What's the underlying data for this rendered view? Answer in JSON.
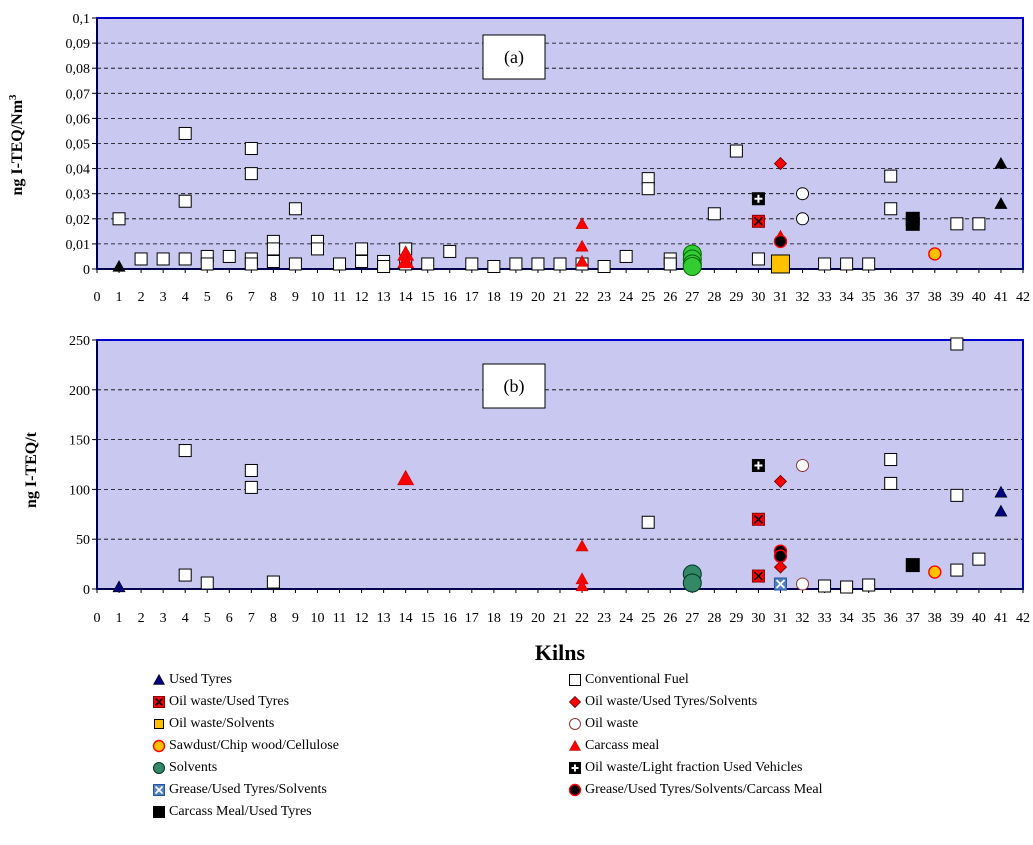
{
  "chart_data": [
    {
      "id": "a",
      "type": "scatter",
      "annotation": "(a)",
      "ylabel": "ng I-TEQ/Nm",
      "ylabel_superscript": "3",
      "xlabel": "",
      "xlim": [
        0,
        42
      ],
      "ylim": [
        0,
        0.1
      ],
      "x_ticks": [
        0,
        1,
        2,
        3,
        4,
        5,
        6,
        7,
        8,
        9,
        10,
        11,
        12,
        13,
        14,
        15,
        16,
        17,
        18,
        19,
        20,
        21,
        22,
        23,
        24,
        25,
        26,
        27,
        28,
        29,
        30,
        31,
        32,
        33,
        34,
        35,
        36,
        37,
        38,
        39,
        40,
        41,
        42
      ],
      "y_tick_labels": [
        "0",
        "0,01",
        "0,02",
        "0,03",
        "0,04",
        "0,05",
        "0,06",
        "0,07",
        "0,08",
        "0,09",
        "0,1"
      ],
      "y_ticks": [
        0,
        0.01,
        0.02,
        0.03,
        0.04,
        0.05,
        0.06,
        0.07,
        0.08,
        0.09,
        0.1
      ],
      "grid": "horizontal dashed",
      "background": "#c8c8f0",
      "series": [
        {
          "name": "Conventional Fuel",
          "marker": "square-open",
          "points": [
            [
              1,
              0.02
            ],
            [
              2,
              0.004
            ],
            [
              3,
              0.004
            ],
            [
              4,
              0.054
            ],
            [
              4,
              0.027
            ],
            [
              4,
              0.004
            ],
            [
              5,
              0.005
            ],
            [
              5,
              0.002
            ],
            [
              6,
              0.005
            ],
            [
              7,
              0.048
            ],
            [
              7,
              0.038
            ],
            [
              7,
              0.004
            ],
            [
              7,
              0.002
            ],
            [
              8,
              0.011
            ],
            [
              8,
              0.008
            ],
            [
              8,
              0.003
            ],
            [
              9,
              0.024
            ],
            [
              9,
              0.002
            ],
            [
              10,
              0.011
            ],
            [
              10,
              0.008
            ],
            [
              11,
              0.002
            ],
            [
              12,
              0.008
            ],
            [
              12,
              0.003
            ],
            [
              13,
              0.003
            ],
            [
              13,
              0.001
            ],
            [
              14,
              0.008
            ],
            [
              14,
              0.002
            ],
            [
              15,
              0.002
            ],
            [
              16,
              0.007
            ],
            [
              17,
              0.002
            ],
            [
              18,
              0.001
            ],
            [
              19,
              0.002
            ],
            [
              20,
              0.002
            ],
            [
              21,
              0.002
            ],
            [
              22,
              0.002
            ],
            [
              23,
              0.001
            ],
            [
              24,
              0.005
            ],
            [
              25,
              0.036
            ],
            [
              25,
              0.032
            ],
            [
              26,
              0.004
            ],
            [
              26,
              0.002
            ],
            [
              28,
              0.022
            ],
            [
              29,
              0.047
            ],
            [
              30,
              0.004
            ],
            [
              33,
              0.002
            ],
            [
              34,
              0.002
            ],
            [
              35,
              0.002
            ],
            [
              36,
              0.037
            ],
            [
              36,
              0.024
            ],
            [
              39,
              0.018
            ],
            [
              40,
              0.018
            ]
          ]
        },
        {
          "name": "Used Tyres",
          "marker": "triangle-black",
          "points": [
            [
              1,
              0.001
            ],
            [
              41,
              0.042
            ],
            [
              41,
              0.026
            ]
          ]
        },
        {
          "name": "Carcass meal",
          "marker": "triangle-red",
          "points": [
            [
              14,
              0.006
            ],
            [
              14,
              0.003
            ],
            [
              22,
              0.018
            ],
            [
              22,
              0.009
            ],
            [
              22,
              0.003
            ],
            [
              31,
              0.013
            ]
          ]
        },
        {
          "name": "Solvents",
          "marker": "circle-green",
          "points": [
            [
              27,
              0.006
            ],
            [
              27,
              0.004
            ],
            [
              27,
              0.002
            ],
            [
              27,
              0.001
            ]
          ]
        },
        {
          "name": "Oil waste/Used Tyres",
          "marker": "square-red-x",
          "points": [
            [
              30,
              0.019
            ]
          ]
        },
        {
          "name": "Oil waste/Used Tyres/Solvents",
          "marker": "diamond-red",
          "points": [
            [
              31,
              0.042
            ]
          ]
        },
        {
          "name": "Oil waste/Light fraction Used Vehicles",
          "marker": "square-black-plus",
          "points": [
            [
              30,
              0.028
            ]
          ]
        },
        {
          "name": "Oil waste/Solvents",
          "marker": "square-yellow",
          "points": [
            [
              31,
              0.002
            ]
          ]
        },
        {
          "name": "Grease/Used Tyres/Solvents/Carcass Meal",
          "marker": "circle-black-red",
          "points": [
            [
              31,
              0.011
            ]
          ]
        },
        {
          "name": "Oil waste",
          "marker": "circle-open",
          "points": [
            [
              32,
              0.03
            ],
            [
              32,
              0.02
            ]
          ]
        },
        {
          "name": "Carcass Meal/Used Tyres",
          "marker": "square-black",
          "points": [
            [
              37,
              0.02
            ],
            [
              37,
              0.018
            ]
          ]
        },
        {
          "name": "Sawdust/Chip wood/Cellulose",
          "marker": "circle-yellow",
          "points": [
            [
              38,
              0.006
            ]
          ]
        }
      ]
    },
    {
      "id": "b",
      "type": "scatter",
      "annotation": "(b)",
      "ylabel": "ng I-TEQ/t",
      "xlabel": "Kilns",
      "xlim": [
        0,
        42
      ],
      "ylim": [
        0,
        250
      ],
      "x_ticks": [
        0,
        1,
        2,
        3,
        4,
        5,
        6,
        7,
        8,
        9,
        10,
        11,
        12,
        13,
        14,
        15,
        16,
        17,
        18,
        19,
        20,
        21,
        22,
        23,
        24,
        25,
        26,
        27,
        28,
        29,
        30,
        31,
        32,
        33,
        34,
        35,
        36,
        37,
        38,
        39,
        40,
        41,
        42
      ],
      "y_tick_labels": [
        "0",
        "50",
        "100",
        "150",
        "200",
        "250"
      ],
      "y_ticks": [
        0,
        50,
        100,
        150,
        200,
        250
      ],
      "grid": "horizontal dashed",
      "background": "#c8c8f0",
      "series": [
        {
          "name": "Conventional Fuel",
          "marker": "square-open",
          "points": [
            [
              4,
              139
            ],
            [
              4,
              14
            ],
            [
              5,
              6
            ],
            [
              7,
              119
            ],
            [
              7,
              102
            ],
            [
              8,
              7
            ],
            [
              25,
              67
            ],
            [
              33,
              3
            ],
            [
              34,
              2
            ],
            [
              35,
              4
            ],
            [
              36,
              130
            ],
            [
              36,
              106
            ],
            [
              39,
              246
            ],
            [
              39,
              94
            ],
            [
              39,
              19
            ],
            [
              40,
              30
            ]
          ]
        },
        {
          "name": "Used Tyres",
          "marker": "triangle-navy",
          "points": [
            [
              1,
              2
            ],
            [
              41,
              97
            ],
            [
              41,
              78
            ]
          ]
        },
        {
          "name": "Carcass meal",
          "marker": "triangle-red",
          "points": [
            [
              14,
              111
            ],
            [
              22,
              43
            ],
            [
              22,
              10
            ],
            [
              22,
              3
            ]
          ]
        },
        {
          "name": "Solvents",
          "marker": "circle-green-dark",
          "points": [
            [
              27,
              15
            ],
            [
              27,
              6
            ]
          ]
        },
        {
          "name": "Oil waste/Used Tyres",
          "marker": "square-red-x",
          "points": [
            [
              30,
              70
            ],
            [
              30,
              13
            ]
          ]
        },
        {
          "name": "Oil waste/Light fraction Used Vehicles",
          "marker": "square-black-plus",
          "points": [
            [
              30,
              124
            ]
          ]
        },
        {
          "name": "Oil waste/Used Tyres/Solvents",
          "marker": "diamond-red",
          "points": [
            [
              31,
              108
            ],
            [
              31,
              22
            ]
          ]
        },
        {
          "name": "Grease/Used Tyres/Solvents/Carcass Meal",
          "marker": "circle-black-red",
          "points": [
            [
              31,
              38
            ],
            [
              31,
              33
            ]
          ]
        },
        {
          "name": "Grease/Used Tyres/Solvents",
          "marker": "square-blue-x",
          "points": [
            [
              31,
              5
            ]
          ]
        },
        {
          "name": "Oil waste",
          "marker": "circle-open-red",
          "points": [
            [
              32,
              124
            ],
            [
              32,
              5
            ]
          ]
        },
        {
          "name": "Carcass Meal/Used Tyres",
          "marker": "square-black",
          "points": [
            [
              37,
              24
            ]
          ]
        },
        {
          "name": "Sawdust/Chip wood/Cellulose",
          "marker": "circle-yellow",
          "points": [
            [
              38,
              17
            ]
          ]
        }
      ]
    }
  ],
  "legend": [
    {
      "label": "Used Tyres",
      "marker": "triangle-navy",
      "col": 0,
      "row": 0
    },
    {
      "label": "Conventional Fuel",
      "marker": "square-open",
      "col": 1,
      "row": 0
    },
    {
      "label": "Oil waste/Used Tyres",
      "marker": "square-red-x",
      "col": 0,
      "row": 1
    },
    {
      "label": "Oil waste/Used Tyres/Solvents",
      "marker": "diamond-red",
      "col": 1,
      "row": 1
    },
    {
      "label": "Oil waste/Solvents",
      "marker": "square-yellow",
      "col": 0,
      "row": 2
    },
    {
      "label": "Oil waste",
      "marker": "circle-open-red",
      "col": 1,
      "row": 2
    },
    {
      "label": "Sawdust/Chip wood/Cellulose",
      "marker": "circle-yellow",
      "col": 0,
      "row": 3
    },
    {
      "label": "Carcass meal",
      "marker": "triangle-red",
      "col": 1,
      "row": 3
    },
    {
      "label": "Solvents",
      "marker": "circle-green-dark",
      "col": 0,
      "row": 4
    },
    {
      "label": "Oil waste/Light fraction Used Vehicles",
      "marker": "square-black-plus",
      "col": 1,
      "row": 4
    },
    {
      "label": "Grease/Used Tyres/Solvents",
      "marker": "square-blue-x",
      "col": 0,
      "row": 5
    },
    {
      "label": "Grease/Used Tyres/Solvents/Carcass Meal",
      "marker": "circle-black-red",
      "col": 1,
      "row": 5
    },
    {
      "label": "Carcass Meal/Used Tyres",
      "marker": "square-black",
      "col": 0,
      "row": 6
    }
  ],
  "colors": {
    "plot_bg": "#c8c8f0",
    "frame": "#0000cc",
    "red": "#ff0000",
    "navy": "#000080",
    "green": "#33cc33",
    "dark_green": "#338866",
    "yellow": "#ffc000",
    "blue_x": "#4f81bd"
  }
}
